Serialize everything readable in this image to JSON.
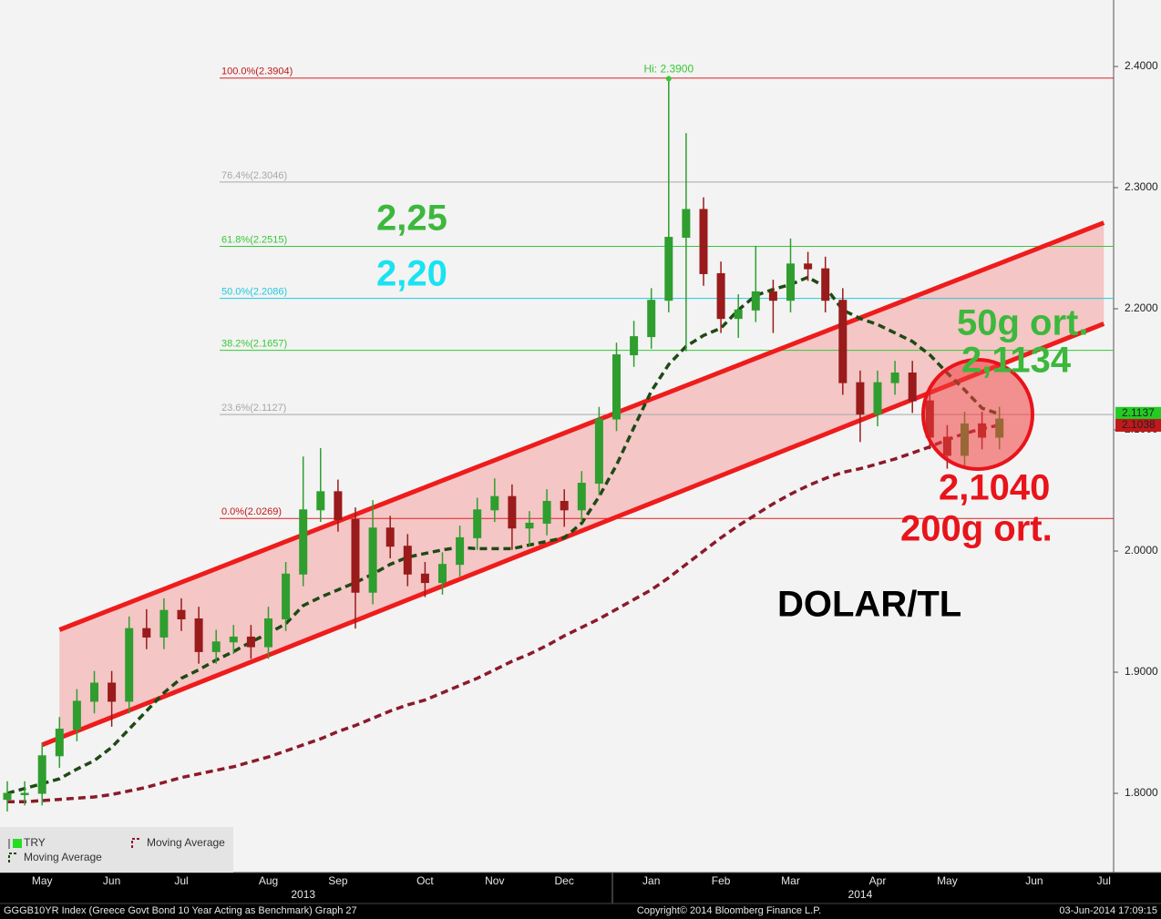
{
  "chart_data": {
    "type": "candlestick",
    "categories": [
      null,
      null,
      "May",
      null,
      null,
      null,
      "Jun",
      null,
      null,
      null,
      "Jul",
      null,
      null,
      null,
      null,
      "Aug",
      null,
      null,
      null,
      "Sep",
      null,
      null,
      null,
      null,
      "Oct",
      null,
      null,
      null,
      "Nov",
      null,
      null,
      null,
      "Dec",
      null,
      null,
      null,
      null,
      "Jan",
      null,
      null,
      null,
      "Feb",
      null,
      null,
      null,
      "Mar",
      null,
      null,
      null,
      null,
      "Apr",
      null,
      null,
      null,
      "May",
      null,
      null,
      null,
      null,
      "Jun",
      null,
      null,
      null,
      "Jul"
    ],
    "year_labels": [
      null,
      null,
      null,
      null,
      null,
      null,
      null,
      null,
      null,
      null,
      null,
      null,
      null,
      null,
      null,
      null,
      null,
      "2013",
      null,
      null,
      null,
      null,
      null,
      null,
      null,
      null,
      null,
      null,
      null,
      null,
      null,
      null,
      null,
      null,
      null,
      null,
      null,
      null,
      null,
      null,
      null,
      null,
      null,
      null,
      null,
      null,
      null,
      null,
      null,
      "2014",
      null,
      null,
      null,
      null,
      null,
      null,
      null,
      null,
      null,
      null,
      null,
      null,
      null,
      null
    ],
    "ylim": [
      1.7346,
      2.4549
    ],
    "yticks": [
      {
        "value": 1.8,
        "label": "1.8000"
      },
      {
        "value": 1.9,
        "label": "1.9000"
      },
      {
        "value": 2.0,
        "label": "2.0000"
      },
      {
        "value": 2.1,
        "label": "2.1000"
      },
      {
        "value": 2.2,
        "label": "2.2000"
      },
      {
        "value": 2.3,
        "label": "2.3000"
      },
      {
        "value": 2.4,
        "label": "2.4000"
      }
    ],
    "series": [
      {
        "name": "TRY",
        "type": "candlestick",
        "up_color": "#2f9e2f",
        "down_color": "#9a1b1b",
        "open": [
          1.795,
          1.8,
          1.8,
          1.831,
          1.853,
          1.876,
          1.891,
          1.876,
          1.936,
          1.929,
          1.951,
          1.944,
          1.917,
          1.925,
          1.929,
          1.921,
          1.944,
          1.981,
          2.034,
          2.049,
          2.026,
          1.966,
          2.019,
          2.004,
          1.981,
          1.974,
          1.989,
          2.011,
          2.034,
          2.045,
          2.019,
          2.023,
          2.041,
          2.034,
          2.056,
          2.109,
          2.162,
          2.177,
          2.207,
          2.259,
          2.282,
          2.229,
          2.192,
          2.199,
          2.214,
          2.207,
          2.237,
          2.233,
          2.207,
          2.139,
          2.113,
          2.139,
          2.147,
          2.124,
          2.094,
          2.079,
          2.105,
          2.094,
          null,
          null,
          null,
          null,
          null,
          null
        ],
        "high": [
          1.81,
          1.81,
          1.841,
          1.863,
          1.886,
          1.901,
          1.901,
          1.946,
          1.952,
          1.961,
          1.961,
          1.954,
          1.935,
          1.939,
          1.939,
          1.954,
          1.991,
          2.078,
          2.085,
          2.059,
          2.036,
          2.042,
          2.029,
          2.014,
          1.991,
          1.999,
          2.021,
          2.044,
          2.06,
          2.055,
          2.033,
          2.051,
          2.051,
          2.066,
          2.119,
          2.172,
          2.19,
          2.217,
          2.39,
          2.345,
          2.292,
          2.239,
          2.212,
          2.252,
          2.224,
          2.258,
          2.247,
          2.243,
          2.217,
          2.149,
          2.149,
          2.157,
          2.157,
          2.134,
          2.104,
          2.115,
          2.115,
          2.119,
          null,
          null,
          null,
          null,
          null,
          null
        ],
        "low": [
          1.785,
          1.79,
          1.79,
          1.821,
          1.843,
          1.866,
          1.855,
          1.866,
          1.919,
          1.919,
          1.934,
          1.907,
          1.907,
          1.915,
          1.911,
          1.911,
          1.934,
          1.971,
          2.024,
          2.016,
          1.936,
          1.956,
          1.994,
          1.971,
          1.962,
          1.964,
          1.979,
          2.001,
          2.024,
          2.001,
          2.004,
          2.013,
          2.02,
          2.024,
          2.046,
          2.099,
          2.152,
          2.167,
          2.197,
          2.165,
          2.219,
          2.18,
          2.176,
          2.189,
          2.18,
          2.197,
          2.223,
          2.197,
          2.129,
          2.09,
          2.103,
          2.129,
          2.114,
          2.084,
          2.068,
          2.069,
          2.084,
          2.084,
          null,
          null,
          null,
          null,
          null,
          null
        ],
        "close": [
          1.8,
          1.8,
          1.831,
          1.853,
          1.876,
          1.891,
          1.876,
          1.936,
          1.929,
          1.951,
          1.944,
          1.917,
          1.925,
          1.929,
          1.921,
          1.944,
          1.981,
          2.034,
          2.049,
          2.026,
          1.966,
          2.019,
          2.004,
          1.981,
          1.974,
          1.989,
          2.011,
          2.034,
          2.045,
          2.019,
          2.023,
          2.041,
          2.034,
          2.056,
          2.109,
          2.162,
          2.177,
          2.207,
          2.259,
          2.282,
          2.229,
          2.192,
          2.199,
          2.214,
          2.207,
          2.237,
          2.233,
          2.207,
          2.139,
          2.113,
          2.139,
          2.147,
          2.124,
          2.094,
          2.079,
          2.105,
          2.094,
          2.109,
          null,
          null,
          null,
          null,
          null,
          null
        ]
      },
      {
        "name": "Moving Average",
        "type": "line",
        "color": "#8b1a2a",
        "values": [
          1.793,
          1.793,
          1.794,
          1.795,
          1.796,
          1.797,
          1.799,
          1.802,
          1.805,
          1.809,
          1.813,
          1.816,
          1.819,
          1.822,
          1.826,
          1.83,
          1.835,
          1.84,
          1.845,
          1.851,
          1.856,
          1.862,
          1.868,
          1.873,
          1.877,
          1.883,
          1.889,
          1.895,
          1.902,
          1.909,
          1.915,
          1.922,
          1.93,
          1.937,
          1.944,
          1.952,
          1.96,
          1.968,
          1.978,
          1.989,
          2.0,
          2.011,
          2.021,
          2.03,
          2.039,
          2.047,
          2.054,
          2.06,
          2.065,
          2.068,
          2.072,
          2.076,
          2.081,
          2.086,
          2.092,
          2.097,
          2.101,
          2.104,
          null,
          null,
          null,
          null,
          null,
          null
        ]
      },
      {
        "name": "Moving Average",
        "type": "line",
        "color": "#1e4a14",
        "values": [
          1.8,
          1.804,
          1.808,
          1.812,
          1.82,
          1.827,
          1.838,
          1.853,
          1.868,
          1.883,
          1.895,
          1.902,
          1.91,
          1.917,
          1.925,
          1.932,
          1.94,
          1.955,
          1.962,
          1.968,
          1.974,
          1.981,
          1.989,
          1.995,
          1.998,
          2.001,
          2.003,
          2.002,
          2.002,
          2.002,
          2.005,
          2.008,
          2.011,
          2.023,
          2.045,
          2.071,
          2.102,
          2.132,
          2.154,
          2.169,
          2.178,
          2.184,
          2.199,
          2.211,
          2.216,
          2.22,
          2.226,
          2.218,
          2.199,
          2.192,
          2.187,
          2.18,
          2.173,
          2.162,
          2.147,
          2.133,
          2.118,
          2.113,
          null,
          null,
          null,
          null,
          null,
          null
        ]
      }
    ],
    "channel": {
      "color": "#ee1c1c",
      "fill": "#f4c6c6",
      "upper": [
        null,
        null,
        null,
        1.935,
        1.9406,
        1.9462,
        1.9518,
        1.9574,
        1.963,
        1.9686,
        1.9742,
        1.9798,
        1.9854,
        1.991,
        1.9966,
        2.0022,
        2.0078,
        2.0134,
        2.019,
        2.0246,
        2.0302,
        2.0358,
        2.0414,
        2.047,
        2.0526,
        2.0582,
        2.0638,
        2.0694,
        2.075,
        2.0806,
        2.0862,
        2.0918,
        2.0974,
        2.103,
        2.1086,
        2.1142,
        2.1198,
        2.1254,
        2.131,
        2.1366,
        2.1422,
        2.1478,
        2.1534,
        2.159,
        2.1646,
        2.1702,
        2.1758,
        2.1814,
        2.187,
        2.1926,
        2.1982,
        2.2038,
        2.2094,
        2.215,
        2.2206,
        2.2262,
        2.2318,
        2.2374,
        2.243,
        2.2486,
        2.2542,
        2.2598,
        2.2654,
        2.271
      ],
      "lower": [
        null,
        null,
        1.84,
        1.8457,
        1.8514,
        1.8571,
        1.8628,
        1.8685,
        1.8742,
        1.8799,
        1.8856,
        1.8913,
        1.897,
        1.9027,
        1.9084,
        1.9141,
        1.9198,
        1.9255,
        1.9312,
        1.9369,
        1.9426,
        1.9483,
        1.954,
        1.9597,
        1.9654,
        1.9711,
        1.9768,
        1.9825,
        1.9882,
        1.9939,
        1.9996,
        2.0053,
        2.011,
        2.0167,
        2.0224,
        2.0281,
        2.0338,
        2.0395,
        2.0452,
        2.0509,
        2.0566,
        2.0623,
        2.068,
        2.0737,
        2.0794,
        2.0851,
        2.0908,
        2.0965,
        2.1022,
        2.1079,
        2.1136,
        2.1193,
        2.125,
        2.1307,
        2.1364,
        2.1421,
        2.1478,
        2.1535,
        2.1592,
        2.1649,
        2.1706,
        2.1763,
        2.182,
        2.1877
      ]
    },
    "levels": [
      {
        "value": 2.3904,
        "label": "100.0%(2.3904)",
        "color": "#e02020"
      },
      {
        "value": 2.3046,
        "label": "76.4%(2.3046)",
        "color": "#a8a8a8"
      },
      {
        "value": 2.2515,
        "label": "61.8%(2.2515)",
        "color": "#37c837"
      },
      {
        "value": 2.2086,
        "label": "50.0%(2.2086)",
        "color": "#22c8e0"
      },
      {
        "value": 2.1657,
        "label": "38.2%(2.1657)",
        "color": "#37c837"
      },
      {
        "value": 2.1127,
        "label": "23.6%(2.1127)",
        "color": "#a8a8a8"
      },
      {
        "value": 2.0269,
        "label": "0.0%(2.0269)",
        "color": "#e02020"
      }
    ],
    "high_annotation": {
      "text": "Hi: 2.3900",
      "value": 2.39,
      "color": "#37c837"
    },
    "price_tags": [
      {
        "value": 2.1137,
        "color": "#22cc22",
        "text_color": "#000000"
      },
      {
        "value": 2.1038,
        "color": "#c0181b",
        "text_color": "#ffffff"
      }
    ],
    "annotations": [
      {
        "text": "2,25",
        "color": "#3cb83c"
      },
      {
        "text": "2,20",
        "color": "#19e3f2"
      },
      {
        "text": "50g ort.",
        "color": "#3cb83c"
      },
      {
        "text": "2,1134",
        "color": "#3cb83c"
      },
      {
        "text": "2,1040",
        "color": "#e8141b"
      },
      {
        "text": "200g ort.",
        "color": "#e8141b"
      },
      {
        "text": "DOLAR/TL",
        "color": "#000000"
      }
    ],
    "legend": "bottom-left",
    "footer": {
      "left": "GGGB10YR Index (Greece Govt Bond 10 Year Acting as Benchmark) Graph 27",
      "center": "Copyright© 2014 Bloomberg Finance L.P.",
      "right": "03-Jun-2014 17:09:15"
    }
  }
}
